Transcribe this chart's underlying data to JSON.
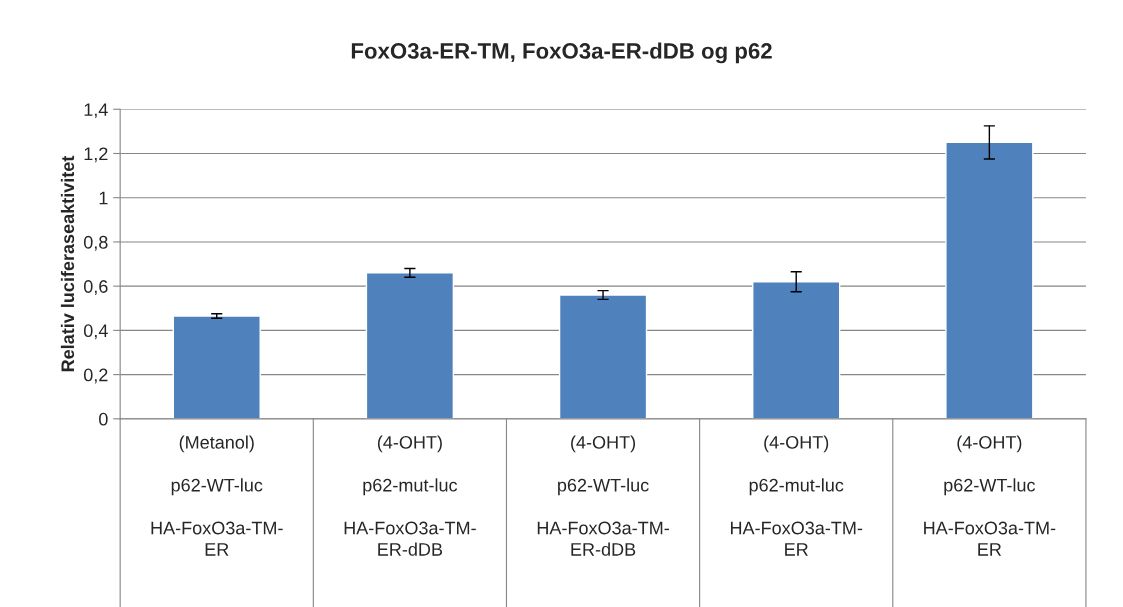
{
  "chart_data": {
    "type": "bar",
    "title": "FoxO3a-ER-TM, FoxO3a-ER-dDB og p62",
    "ylabel": "Relativ luciferaseaktivitet",
    "categories": [
      "(Metanol)\n\np62-WT-luc\n\nHA-FoxO3a-TM-\nER",
      "(4-OHT)\n\np62-mut-luc\n\nHA-FoxO3a-TM-\nER-dDB",
      "(4-OHT)\n\np62-WT-luc\n\nHA-FoxO3a-TM-\nER-dDB",
      "(4-OHT)\n\np62-mut-luc\n\nHA-FoxO3a-TM-\nER",
      "(4-OHT)\n\np62-WT-luc\n\nHA-FoxO3a-TM-\nER"
    ],
    "values": [
      0.465,
      0.66,
      0.56,
      0.62,
      1.25
    ],
    "errors": [
      0.01,
      0.02,
      0.02,
      0.045,
      0.075
    ],
    "color": "#4f81bd",
    "ylim": [
      0,
      1.4
    ],
    "yticks": [
      {
        "value": 0,
        "label": "0"
      },
      {
        "value": 0.2,
        "label": "0,2"
      },
      {
        "value": 0.4,
        "label": "0,4"
      },
      {
        "value": 0.6,
        "label": "0,6"
      },
      {
        "value": 0.8,
        "label": "0,8"
      },
      {
        "value": 1,
        "label": "1"
      },
      {
        "value": 1.2,
        "label": "1,2"
      },
      {
        "value": 1.4,
        "label": "1,4"
      }
    ],
    "grid": "y",
    "legend": false
  }
}
